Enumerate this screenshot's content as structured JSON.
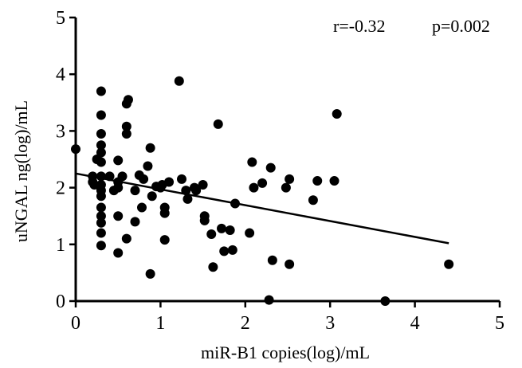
{
  "chart_data": {
    "type": "scatter",
    "title": "",
    "xlabel": "miR-B1 copies(log)/mL",
    "ylabel": "uNGAL ng(log)/mL",
    "annotations": {
      "r": "r=-0.32",
      "p": "p=0.002"
    },
    "xlim": [
      0,
      5
    ],
    "ylim": [
      0,
      5
    ],
    "x_ticks": [
      "0",
      "1",
      "2",
      "3",
      "4",
      "5"
    ],
    "y_ticks": [
      "0",
      "1",
      "2",
      "3",
      "4",
      "5"
    ],
    "grid": false,
    "legend": "none",
    "regression_line": {
      "x": [
        0,
        4.4
      ],
      "y": [
        2.25,
        1.02
      ]
    },
    "colors": {
      "points": "#000000",
      "line": "#000000",
      "axes": "#000000"
    },
    "points": [
      {
        "x": 0.0,
        "y": 2.68
      },
      {
        "x": 0.2,
        "y": 2.2
      },
      {
        "x": 0.2,
        "y": 2.1
      },
      {
        "x": 0.22,
        "y": 2.05
      },
      {
        "x": 0.3,
        "y": 3.7
      },
      {
        "x": 0.3,
        "y": 3.28
      },
      {
        "x": 0.3,
        "y": 2.95
      },
      {
        "x": 0.3,
        "y": 2.75
      },
      {
        "x": 0.3,
        "y": 2.62
      },
      {
        "x": 0.3,
        "y": 2.45
      },
      {
        "x": 0.3,
        "y": 2.2
      },
      {
        "x": 0.3,
        "y": 2.05
      },
      {
        "x": 0.3,
        "y": 1.95
      },
      {
        "x": 0.3,
        "y": 1.85
      },
      {
        "x": 0.3,
        "y": 1.65
      },
      {
        "x": 0.3,
        "y": 1.5
      },
      {
        "x": 0.3,
        "y": 1.38
      },
      {
        "x": 0.3,
        "y": 1.2
      },
      {
        "x": 0.3,
        "y": 0.98
      },
      {
        "x": 0.25,
        "y": 2.5
      },
      {
        "x": 0.4,
        "y": 2.2
      },
      {
        "x": 0.45,
        "y": 1.95
      },
      {
        "x": 0.5,
        "y": 2.48
      },
      {
        "x": 0.5,
        "y": 2.1
      },
      {
        "x": 0.5,
        "y": 2.0
      },
      {
        "x": 0.5,
        "y": 1.5
      },
      {
        "x": 0.5,
        "y": 0.85
      },
      {
        "x": 0.55,
        "y": 2.2
      },
      {
        "x": 0.6,
        "y": 3.48
      },
      {
        "x": 0.6,
        "y": 3.08
      },
      {
        "x": 0.6,
        "y": 2.95
      },
      {
        "x": 0.6,
        "y": 1.1
      },
      {
        "x": 0.62,
        "y": 3.55
      },
      {
        "x": 0.7,
        "y": 1.95
      },
      {
        "x": 0.7,
        "y": 1.4
      },
      {
        "x": 0.75,
        "y": 2.22
      },
      {
        "x": 0.78,
        "y": 1.65
      },
      {
        "x": 0.8,
        "y": 2.15
      },
      {
        "x": 0.85,
        "y": 2.38
      },
      {
        "x": 0.88,
        "y": 2.7
      },
      {
        "x": 0.9,
        "y": 1.85
      },
      {
        "x": 0.88,
        "y": 0.48
      },
      {
        "x": 0.95,
        "y": 2.02
      },
      {
        "x": 1.0,
        "y": 2.0
      },
      {
        "x": 1.02,
        "y": 2.05
      },
      {
        "x": 1.05,
        "y": 1.65
      },
      {
        "x": 1.05,
        "y": 1.55
      },
      {
        "x": 1.05,
        "y": 1.08
      },
      {
        "x": 1.1,
        "y": 2.1
      },
      {
        "x": 1.22,
        "y": 3.88
      },
      {
        "x": 1.25,
        "y": 2.15
      },
      {
        "x": 1.3,
        "y": 1.95
      },
      {
        "x": 1.32,
        "y": 1.8
      },
      {
        "x": 1.4,
        "y": 2.0
      },
      {
        "x": 1.42,
        "y": 1.95
      },
      {
        "x": 1.5,
        "y": 2.05
      },
      {
        "x": 1.52,
        "y": 1.5
      },
      {
        "x": 1.52,
        "y": 1.42
      },
      {
        "x": 1.6,
        "y": 1.18
      },
      {
        "x": 1.62,
        "y": 0.6
      },
      {
        "x": 1.68,
        "y": 3.12
      },
      {
        "x": 1.72,
        "y": 1.28
      },
      {
        "x": 1.75,
        "y": 0.88
      },
      {
        "x": 1.82,
        "y": 1.25
      },
      {
        "x": 1.85,
        "y": 0.9
      },
      {
        "x": 1.88,
        "y": 1.72
      },
      {
        "x": 2.05,
        "y": 1.2
      },
      {
        "x": 2.08,
        "y": 2.45
      },
      {
        "x": 2.1,
        "y": 2.0
      },
      {
        "x": 2.2,
        "y": 2.08
      },
      {
        "x": 2.3,
        "y": 2.35
      },
      {
        "x": 2.28,
        "y": 0.02
      },
      {
        "x": 2.32,
        "y": 0.72
      },
      {
        "x": 2.48,
        "y": 2.0
      },
      {
        "x": 2.52,
        "y": 2.15
      },
      {
        "x": 2.52,
        "y": 0.65
      },
      {
        "x": 2.8,
        "y": 1.78
      },
      {
        "x": 2.85,
        "y": 2.12
      },
      {
        "x": 3.05,
        "y": 2.12
      },
      {
        "x": 3.08,
        "y": 3.3
      },
      {
        "x": 3.65,
        "y": 0.0
      },
      {
        "x": 4.4,
        "y": 0.65
      }
    ]
  }
}
